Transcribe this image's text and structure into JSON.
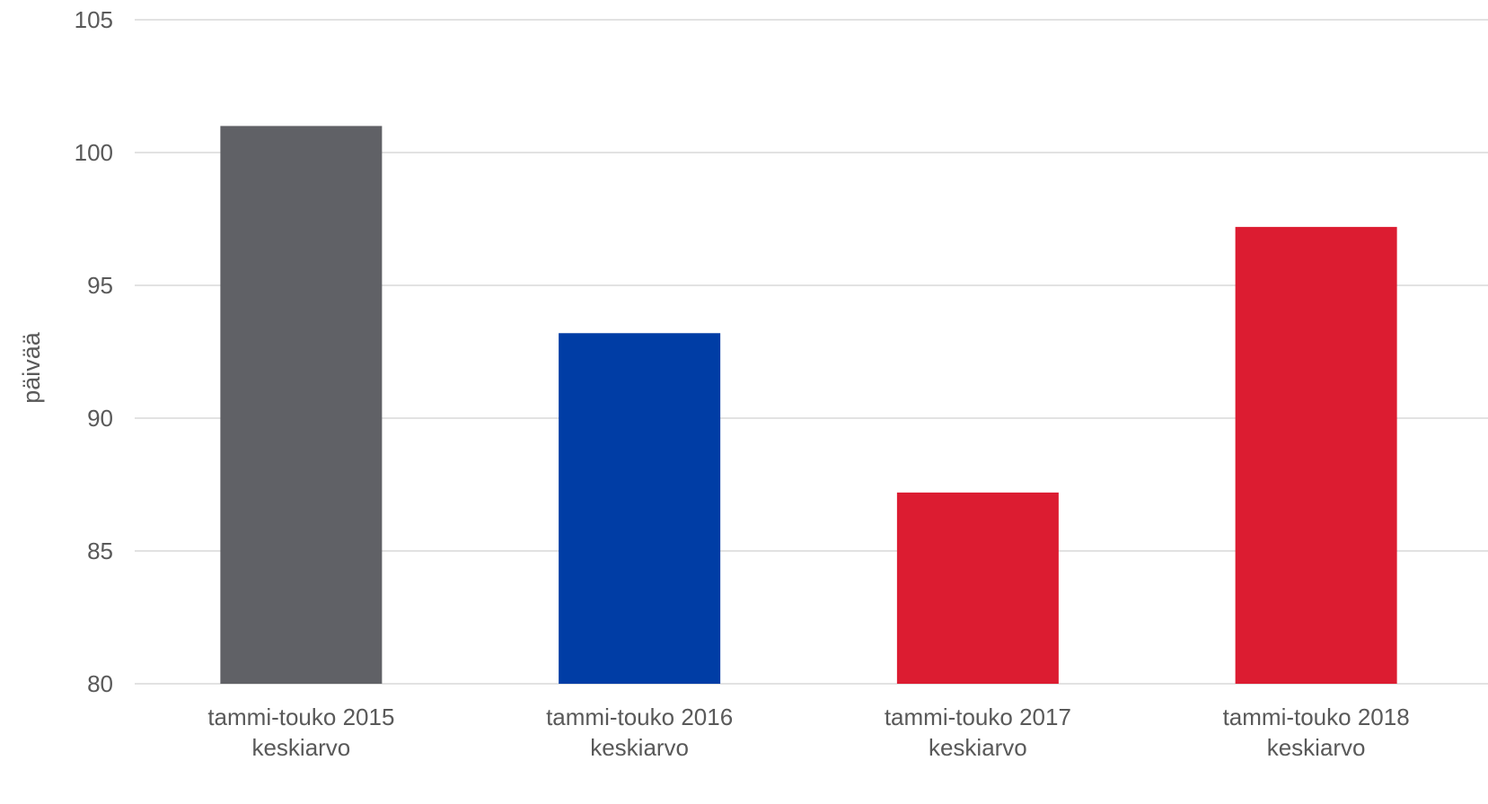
{
  "chart_data": {
    "type": "bar",
    "title": "",
    "xlabel": "",
    "ylabel": "päivää",
    "ylim": [
      80,
      105
    ],
    "yticks": [
      80,
      85,
      90,
      95,
      100,
      105
    ],
    "grid": true,
    "categories": [
      [
        "tammi-touko 2015",
        "keskiarvo"
      ],
      [
        "tammi-touko 2016",
        "keskiarvo"
      ],
      [
        "tammi-touko 2017",
        "keskiarvo"
      ],
      [
        "tammi-touko 2018",
        "keskiarvo"
      ]
    ],
    "values": [
      101,
      93.2,
      87.2,
      97.2
    ],
    "colors": [
      "#606166",
      "#003da5",
      "#dc1c31",
      "#dc1c31"
    ]
  }
}
